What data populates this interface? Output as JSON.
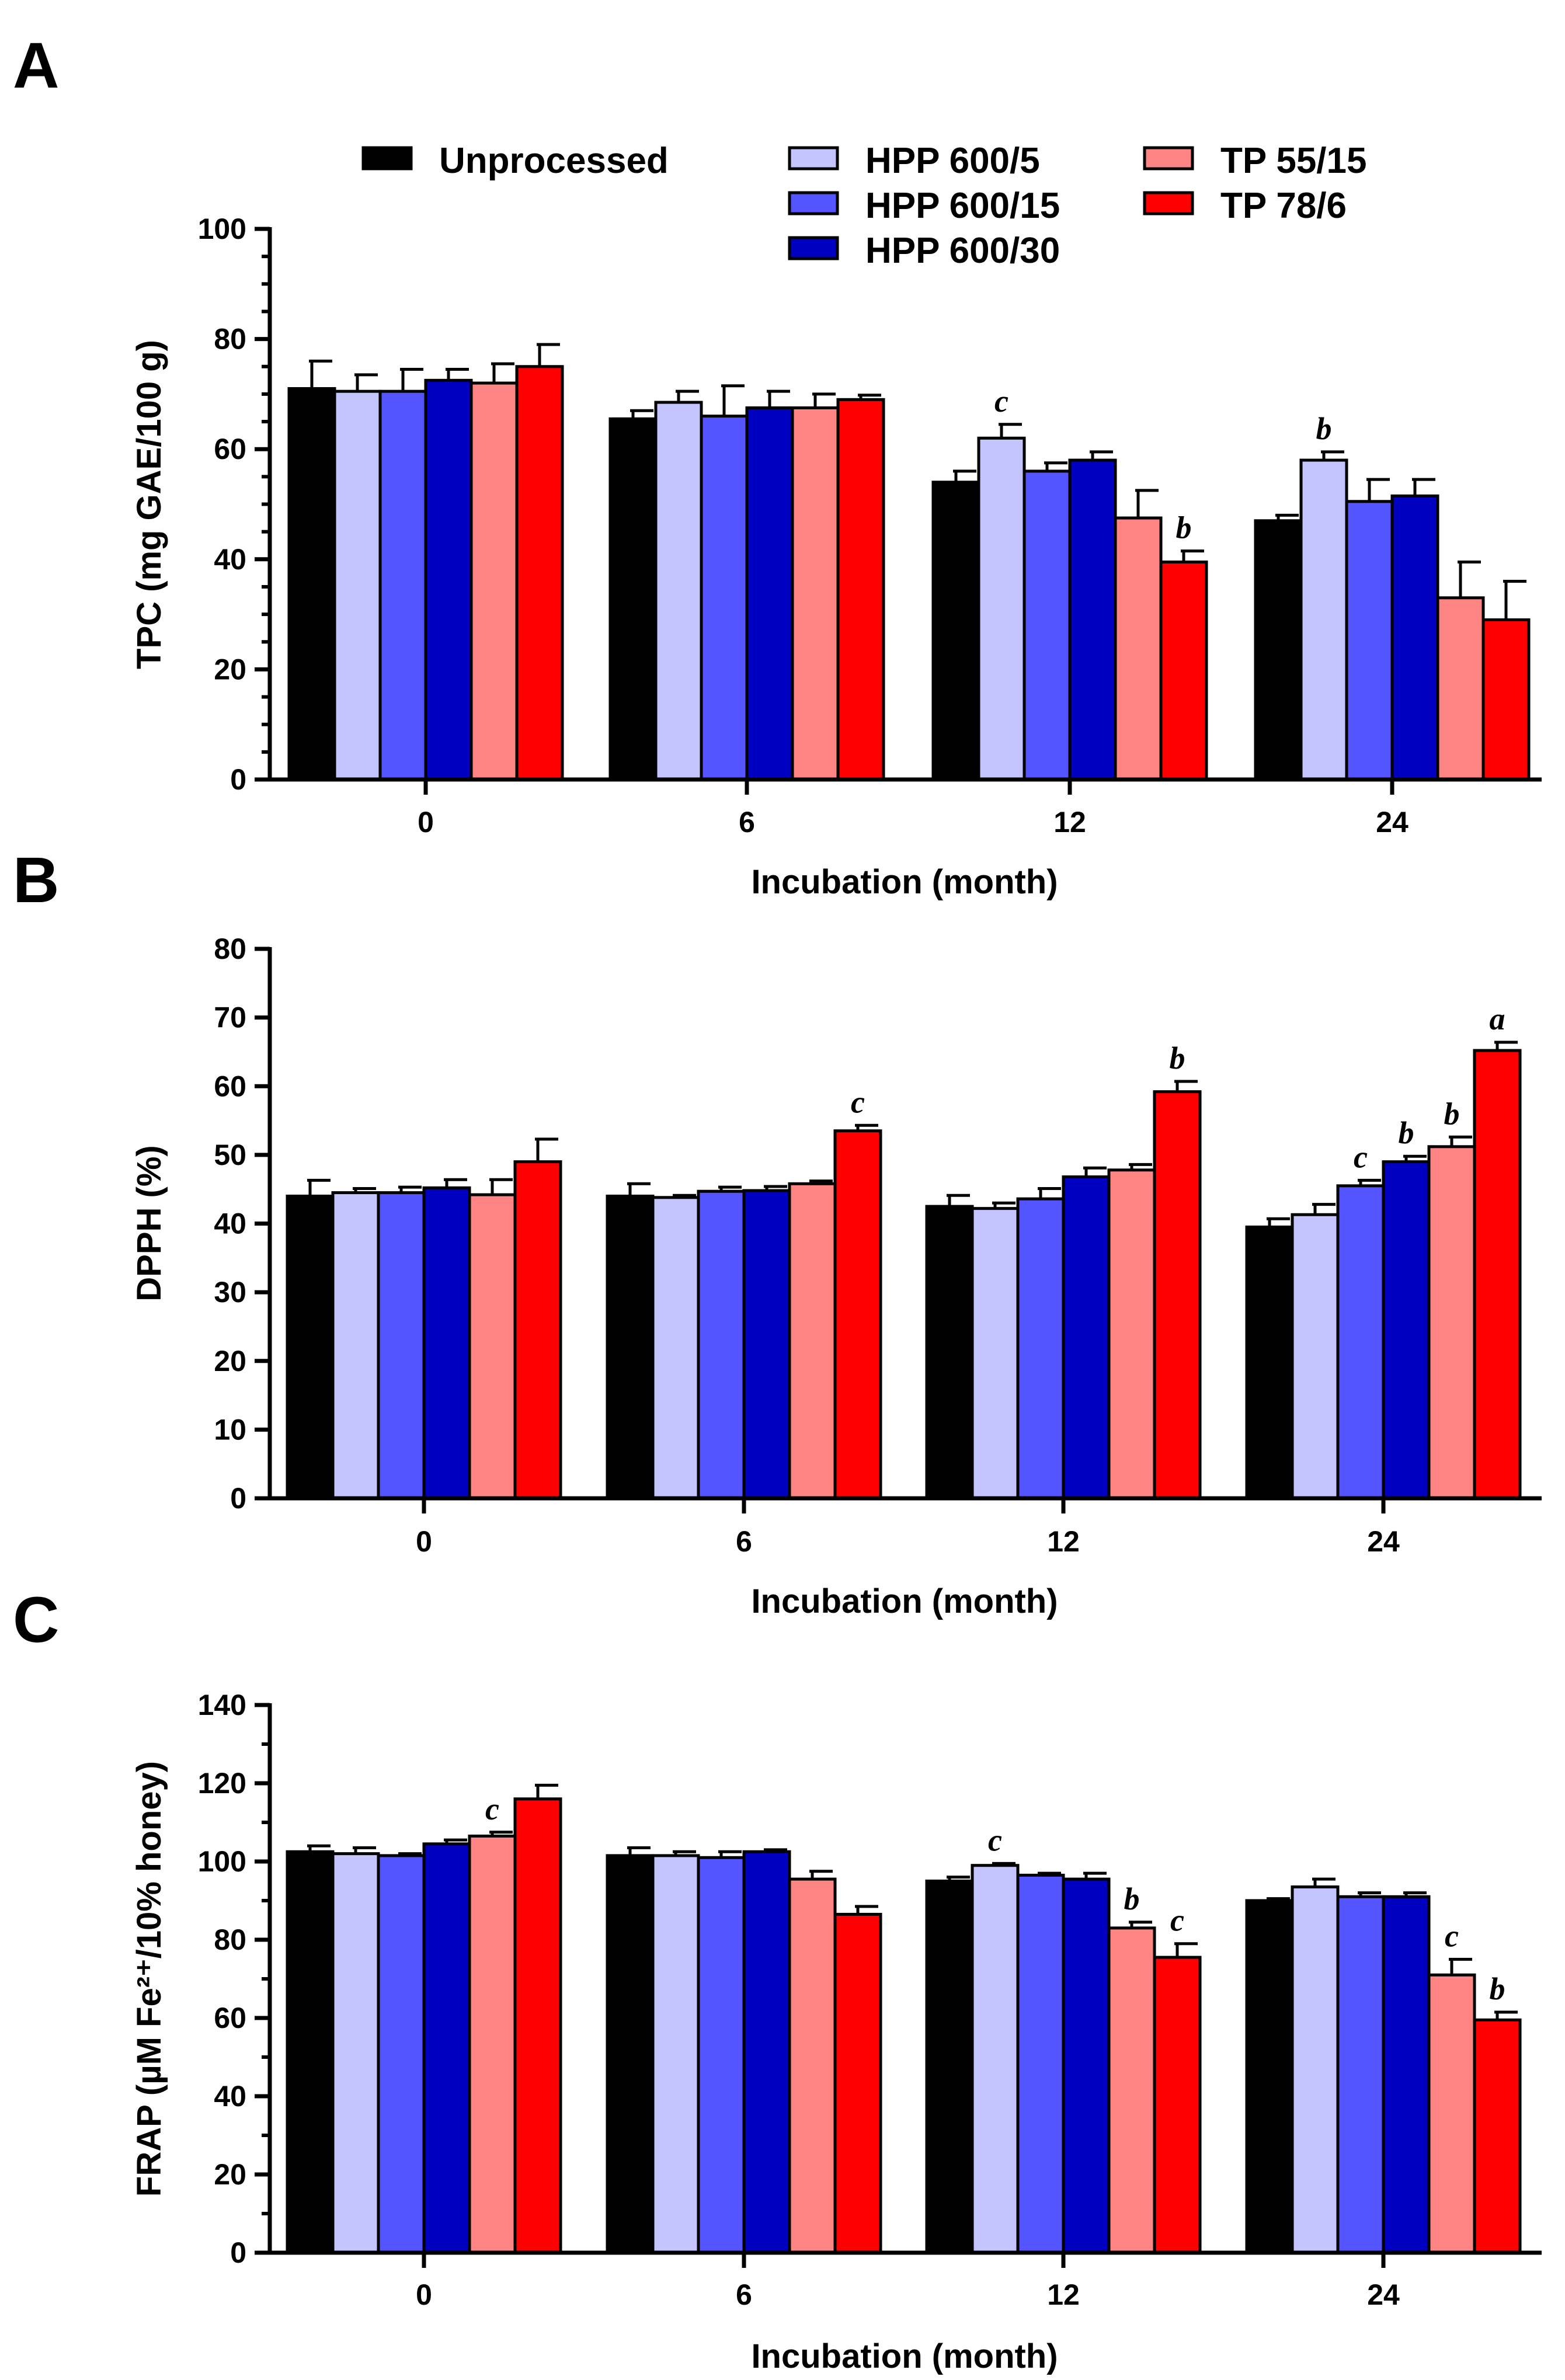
{
  "legend": [
    {
      "name": "Unprocessed",
      "color": "#000000"
    },
    {
      "name": "HPP 600/5",
      "color": "#c4c4ff"
    },
    {
      "name": "HPP 600/15",
      "color": "#5555ff"
    },
    {
      "name": "HPP 600/30",
      "color": "#0000c0"
    },
    {
      "name": "TP 55/15",
      "color": "#ff8585"
    },
    {
      "name": "TP 78/6",
      "color": "#ff0000"
    }
  ],
  "chart_data": [
    {
      "type": "bar",
      "panel": "A",
      "categories": [
        "0",
        "6",
        "12",
        "24"
      ],
      "xlabel": "Incubation (month)",
      "ylabel": "TPC (mg GAE/100 g)",
      "ylim": [
        0,
        100
      ],
      "yticks": [
        "0",
        "20",
        "40",
        "60",
        "80",
        "100"
      ],
      "minor_step": 5,
      "series": [
        {
          "name": "Unprocessed",
          "values": [
            71,
            65.5,
            54,
            47
          ],
          "errors": [
            5,
            1.5,
            2,
            1
          ],
          "labels": [
            "",
            "",
            "",
            ""
          ]
        },
        {
          "name": "HPP 600/5",
          "values": [
            70.5,
            68.5,
            62,
            58
          ],
          "errors": [
            3,
            2,
            2.5,
            1.5
          ],
          "labels": [
            "",
            "",
            "c",
            "b"
          ]
        },
        {
          "name": "HPP 600/15",
          "values": [
            70.5,
            66,
            56,
            50.5
          ],
          "errors": [
            4,
            5.5,
            1.5,
            4
          ],
          "labels": [
            "",
            "",
            "",
            ""
          ]
        },
        {
          "name": "HPP 600/30",
          "values": [
            72.5,
            67.5,
            58,
            51.5
          ],
          "errors": [
            2,
            3,
            1.5,
            3
          ],
          "labels": [
            "",
            "",
            "",
            ""
          ]
        },
        {
          "name": "TP 55/15",
          "values": [
            72,
            67.5,
            47.5,
            33
          ],
          "errors": [
            3.5,
            2.5,
            5,
            6.5
          ],
          "labels": [
            "",
            "",
            "",
            ""
          ]
        },
        {
          "name": "TP 78/6",
          "values": [
            75,
            69,
            39.5,
            29
          ],
          "errors": [
            4,
            0.8,
            2,
            7
          ],
          "labels": [
            "",
            "",
            "b",
            ""
          ]
        }
      ]
    },
    {
      "type": "bar",
      "panel": "B",
      "categories": [
        "0",
        "6",
        "12",
        "24"
      ],
      "xlabel": "Incubation (month)",
      "ylabel": "DPPH (%)",
      "ylim": [
        0,
        80
      ],
      "yticks": [
        "0",
        "10",
        "20",
        "30",
        "40",
        "50",
        "60",
        "70",
        "80"
      ],
      "minor_step": 0,
      "series": [
        {
          "name": "Unprocessed",
          "values": [
            44,
            44,
            42.5,
            39.5
          ],
          "errors": [
            2.3,
            1.8,
            1.6,
            1.2
          ],
          "labels": [
            "",
            "",
            "",
            ""
          ]
        },
        {
          "name": "HPP 600/5",
          "values": [
            44.5,
            43.8,
            42.2,
            41.3
          ],
          "errors": [
            0.6,
            0.3,
            0.8,
            1.5
          ],
          "labels": [
            "",
            "",
            "",
            ""
          ]
        },
        {
          "name": "HPP 600/15",
          "values": [
            44.5,
            44.7,
            43.6,
            45.5
          ],
          "errors": [
            0.8,
            0.6,
            1.5,
            0.8
          ],
          "labels": [
            "",
            "",
            "",
            "c"
          ]
        },
        {
          "name": "HPP 600/30",
          "values": [
            45.2,
            44.8,
            46.8,
            49
          ],
          "errors": [
            1.2,
            0.6,
            1.3,
            0.8
          ],
          "labels": [
            "",
            "",
            "",
            "b"
          ]
        },
        {
          "name": "TP 55/15",
          "values": [
            44.2,
            45.8,
            47.8,
            51.2
          ],
          "errors": [
            2.2,
            0.4,
            0.8,
            1.4
          ],
          "labels": [
            "",
            "",
            "",
            "b"
          ]
        },
        {
          "name": "TP 78/6",
          "values": [
            49,
            53.5,
            59.2,
            65.2
          ],
          "errors": [
            3.3,
            0.8,
            1.5,
            1.2
          ],
          "labels": [
            "",
            "c",
            "b",
            "a"
          ]
        }
      ]
    },
    {
      "type": "bar",
      "panel": "C",
      "categories": [
        "0",
        "6",
        "12",
        "24"
      ],
      "xlabel": "Incubation (month)",
      "ylabel": "FRAP (µM Fe²⁺/10% honey)",
      "ylim": [
        0,
        140
      ],
      "yticks": [
        "0",
        "20",
        "40",
        "60",
        "80",
        "100",
        "120",
        "140"
      ],
      "minor_step": 10,
      "series": [
        {
          "name": "Unprocessed",
          "values": [
            102.5,
            101.5,
            95,
            90
          ],
          "errors": [
            1.5,
            2,
            1,
            0.5
          ],
          "labels": [
            "",
            "",
            "",
            ""
          ]
        },
        {
          "name": "HPP 600/5",
          "values": [
            102,
            101.5,
            99,
            93.5
          ],
          "errors": [
            1.5,
            1,
            0.5,
            2
          ],
          "labels": [
            "",
            "",
            "c",
            ""
          ]
        },
        {
          "name": "HPP 600/15",
          "values": [
            101.5,
            101,
            96.5,
            91
          ],
          "errors": [
            0.5,
            1.5,
            0.5,
            1
          ],
          "labels": [
            "",
            "",
            "",
            ""
          ]
        },
        {
          "name": "HPP 600/30",
          "values": [
            104.5,
            102.5,
            95.5,
            91
          ],
          "errors": [
            1,
            0.5,
            1.5,
            1
          ],
          "labels": [
            "",
            "",
            "",
            ""
          ]
        },
        {
          "name": "TP 55/15",
          "values": [
            106.5,
            95.5,
            83,
            71
          ],
          "errors": [
            1,
            2,
            1.5,
            4
          ],
          "labels": [
            "c",
            "",
            "b",
            "c"
          ]
        },
        {
          "name": "TP 78/6",
          "values": [
            116,
            86.5,
            75.5,
            59.5
          ],
          "errors": [
            3.5,
            2,
            3.5,
            2
          ],
          "labels": [
            "",
            "",
            "c",
            "b"
          ]
        }
      ]
    }
  ]
}
